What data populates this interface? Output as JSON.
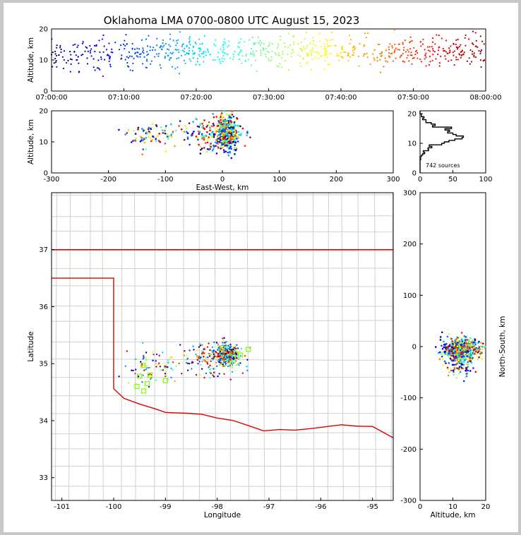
{
  "figure": {
    "title": "Oklahoma LMA 0700-0800 UTC August 15, 2023",
    "source_count_label": "742 sources"
  },
  "chart_data": [
    {
      "id": "time-altitude",
      "type": "scatter",
      "ylabel": "Altitude, km",
      "xlabel": "",
      "xlim": [
        "07:00:00",
        "08:00:00"
      ],
      "ylim": [
        0,
        20
      ],
      "xticks": [
        "07:00:00",
        "07:10:00",
        "07:20:00",
        "07:30:00",
        "07:40:00",
        "07:50:00",
        "08:00:00"
      ],
      "yticks": [
        0,
        10,
        20
      ],
      "color_encoding": "time (blue → red)",
      "point_count": 742
    },
    {
      "id": "east-west-altitude",
      "type": "scatter",
      "xlabel": "East-West, km",
      "ylabel": "Altitude, km",
      "xlim": [
        -300,
        300
      ],
      "ylim": [
        0,
        20
      ],
      "xticks": [
        -300,
        -200,
        -100,
        0,
        100,
        200,
        300
      ],
      "yticks": [
        0,
        10,
        20
      ],
      "cluster_center": {
        "x": 10,
        "y": 13
      }
    },
    {
      "id": "altitude-histogram",
      "type": "line",
      "xlim": [
        0,
        100
      ],
      "ylim": [
        0,
        21
      ],
      "xticks": [
        0,
        50,
        100
      ],
      "yticks": [
        0,
        10,
        20
      ],
      "annotation": "742 sources"
    },
    {
      "id": "plan-view-map",
      "type": "scatter",
      "xlabel": "Longitude",
      "ylabel": "Latitude",
      "xlim": [
        -101.2,
        -94.6
      ],
      "ylim": [
        32.6,
        38.0
      ],
      "xticks": [
        -101,
        -100,
        -99,
        -98,
        -97,
        -96,
        -95
      ],
      "yticks": [
        33,
        34,
        35,
        36,
        37
      ],
      "cluster_center": {
        "lon": -97.9,
        "lat": 35.2
      },
      "station_markers": [
        {
          "lon": -99.43,
          "lat": 34.97
        },
        {
          "lon": -99.3,
          "lat": 34.8
        },
        {
          "lon": -99.5,
          "lat": 34.78
        },
        {
          "lon": -99.35,
          "lat": 34.65
        },
        {
          "lon": -99.55,
          "lat": 34.6
        },
        {
          "lon": -99.42,
          "lat": 34.52
        },
        {
          "lon": -99.0,
          "lat": 34.7
        },
        {
          "lon": -97.55,
          "lat": 35.15
        },
        {
          "lon": -97.4,
          "lat": 35.25
        }
      ]
    },
    {
      "id": "altitude-north-south",
      "type": "scatter",
      "xlabel": "Altitude, km",
      "ylabel": "North-South, km",
      "xlim": [
        0,
        20
      ],
      "ylim": [
        -300,
        300
      ],
      "xticks": [
        0,
        10,
        20
      ],
      "yticks": [
        -300,
        -200,
        -100,
        0,
        100,
        200,
        300
      ]
    }
  ]
}
